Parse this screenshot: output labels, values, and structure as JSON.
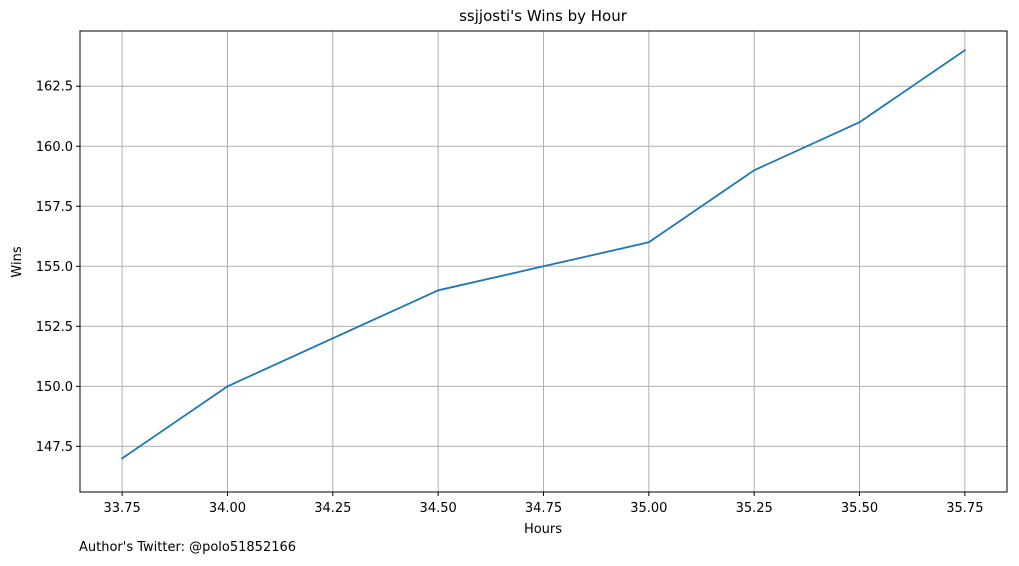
{
  "chart_data": {
    "type": "line",
    "title": "ssjjosti's Wins by Hour",
    "xlabel": "Hours",
    "ylabel": "Wins",
    "x": [
      33.75,
      34.0,
      34.5,
      34.75,
      35.0,
      35.25,
      35.5,
      35.75
    ],
    "series": [
      {
        "values": [
          147,
          150,
          154,
          155,
          156,
          159,
          161,
          164
        ],
        "color": "#1f77b4"
      }
    ],
    "xlim": [
      33.65,
      35.85
    ],
    "ylim": [
      145.6,
      164.8
    ],
    "xticks": [
      33.75,
      34.0,
      34.25,
      34.5,
      34.75,
      35.0,
      35.25,
      35.5,
      35.75
    ],
    "xtick_labels": [
      "33.75",
      "34.00",
      "34.25",
      "34.50",
      "34.75",
      "35.00",
      "35.25",
      "35.50",
      "35.75"
    ],
    "yticks": [
      147.5,
      150.0,
      152.5,
      155.0,
      157.5,
      160.0,
      162.5
    ],
    "ytick_labels": [
      "147.5",
      "150.0",
      "152.5",
      "155.0",
      "157.5",
      "160.0",
      "162.5"
    ],
    "grid": true,
    "grid_color": "#b0b0b0"
  },
  "footnote": "Author's Twitter: @polo51852166"
}
